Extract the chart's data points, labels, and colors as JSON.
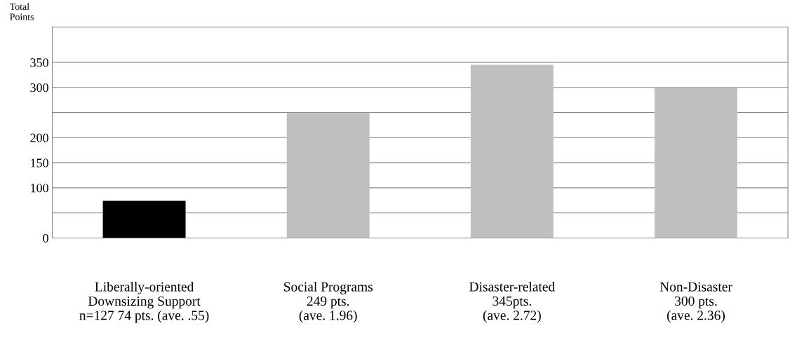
{
  "chart_data": {
    "type": "bar",
    "ylabel": "Total\nPoints",
    "categories": [
      "Liberally-oriented\nDownsizing Support\nn=127 74 pts. (ave. .55)",
      "Social Programs\n249 pts.\n(ave. 1.96)",
      "Disaster-related\n345pts.\n(ave. 2.72)",
      "Non-Disaster\n300 pts.\n(ave. 2.36)"
    ],
    "values": [
      74,
      249,
      345,
      300
    ],
    "colors": [
      "#000000",
      "#bfbfbf",
      "#bfbfbf",
      "#bfbfbf"
    ],
    "ylim": [
      0,
      420
    ],
    "yticks": [
      0,
      {
        "value": 50,
        "label": null
      },
      100,
      150,
      200,
      {
        "value": 250,
        "label": null
      },
      300,
      350
    ],
    "grid": "y"
  }
}
